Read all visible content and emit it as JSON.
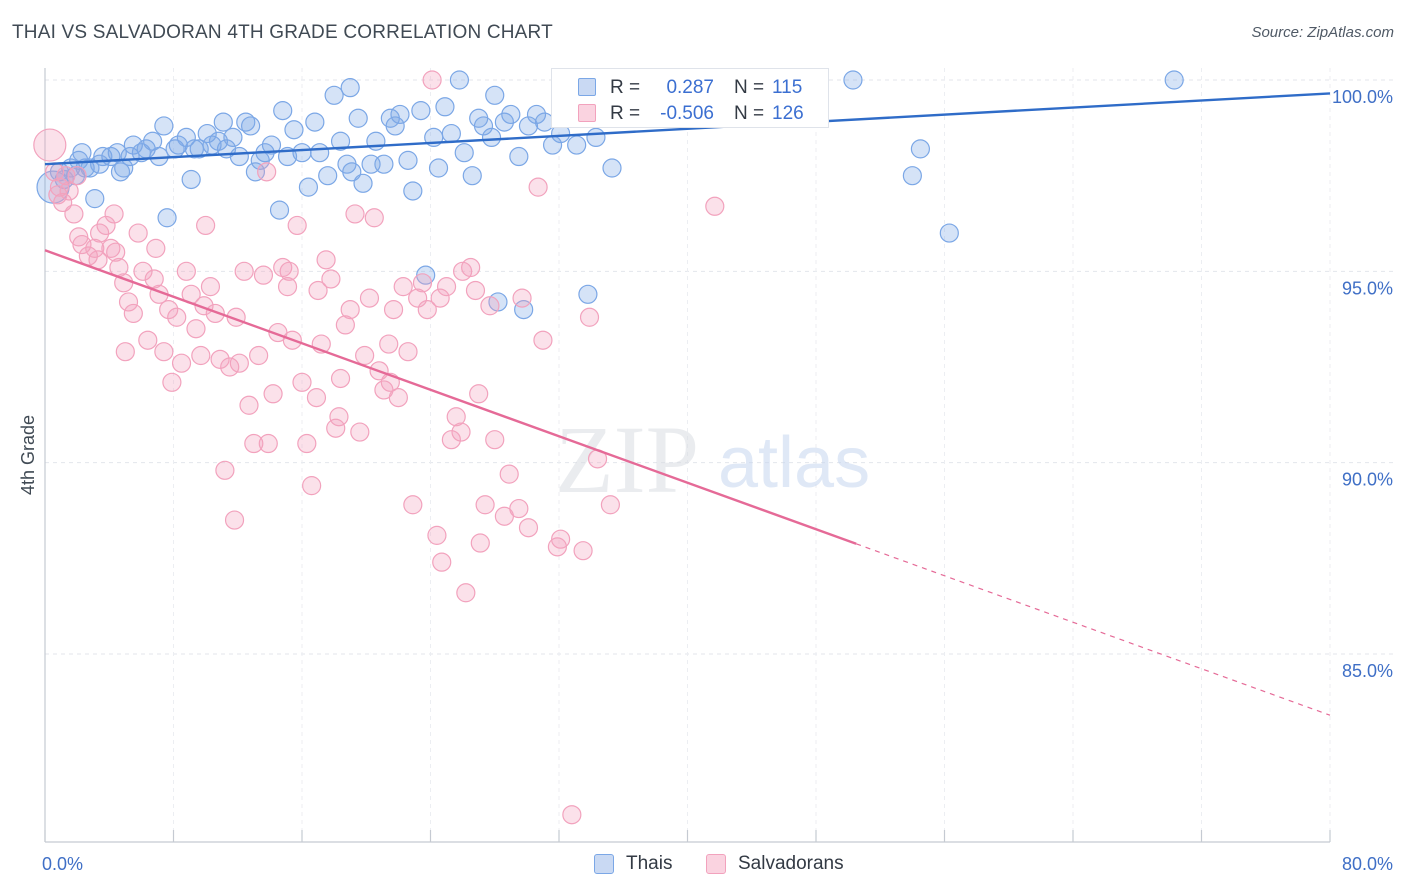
{
  "header": {
    "title": "THAI VS SALVADORAN 4TH GRADE CORRELATION CHART",
    "source": "Source: ZipAtlas.com"
  },
  "watermark": {
    "zip": "ZIP",
    "atlas": "atlas"
  },
  "legend_top": {
    "rows": [
      {
        "r_label": "R =",
        "r_value": "0.287",
        "n_label": "N =",
        "n_value": "115"
      },
      {
        "r_label": "R =",
        "r_value": "-0.506",
        "n_label": "N =",
        "n_value": "126"
      }
    ]
  },
  "legend_bottom": {
    "items": [
      {
        "label": "Thais"
      },
      {
        "label": "Salvadorans"
      }
    ]
  },
  "chart_data": {
    "type": "scatter",
    "title": "THAI VS SALVADORAN 4TH GRADE CORRELATION CHART",
    "xlabel": "",
    "ylabel": "4th Grade",
    "xlim": [
      0,
      80
    ],
    "ylim": [
      80.5,
      100.6
    ],
    "x_tick_labels": [
      "0.0%",
      "80.0%"
    ],
    "y_ticks": [
      {
        "value": 100,
        "label": "100.0%"
      },
      {
        "value": 95,
        "label": "95.0%"
      },
      {
        "value": 90,
        "label": "90.0%"
      },
      {
        "value": 85,
        "label": "85.0%"
      }
    ],
    "grid": true,
    "legend_placement": "bottom-center",
    "series": [
      {
        "name": "Thais",
        "color": "#7ba7e6",
        "line_color": "#2f6cc8",
        "r": 0.287,
        "n": 115,
        "trend": {
          "x": [
            0,
            80
          ],
          "y": [
            97.8,
            99.65
          ],
          "dashed_from": null
        },
        "points": [
          [
            0.5,
            97.2
          ],
          [
            0.9,
            97.6
          ],
          [
            1.2,
            97.4
          ],
          [
            1.6,
            97.7
          ],
          [
            2.1,
            97.9
          ],
          [
            2.3,
            98.1
          ],
          [
            2.8,
            97.7
          ],
          [
            3.1,
            96.9
          ],
          [
            3.6,
            98.0
          ],
          [
            4.1,
            98.0
          ],
          [
            4.5,
            98.1
          ],
          [
            4.9,
            97.7
          ],
          [
            5.3,
            98.0
          ],
          [
            5.5,
            98.3
          ],
          [
            6.0,
            98.1
          ],
          [
            6.3,
            98.2
          ],
          [
            6.7,
            98.4
          ],
          [
            7.1,
            98.0
          ],
          [
            7.4,
            98.8
          ],
          [
            7.6,
            96.4
          ],
          [
            8.1,
            98.2
          ],
          [
            8.3,
            98.3
          ],
          [
            8.8,
            98.5
          ],
          [
            9.1,
            97.4
          ],
          [
            9.3,
            98.2
          ],
          [
            9.6,
            98.2
          ],
          [
            10.1,
            98.6
          ],
          [
            10.4,
            98.3
          ],
          [
            10.8,
            98.4
          ],
          [
            11.1,
            98.9
          ],
          [
            11.3,
            98.2
          ],
          [
            11.7,
            98.5
          ],
          [
            12.1,
            98.0
          ],
          [
            12.5,
            98.9
          ],
          [
            12.8,
            98.8
          ],
          [
            13.1,
            97.6
          ],
          [
            13.4,
            97.9
          ],
          [
            13.7,
            98.1
          ],
          [
            14.1,
            98.3
          ],
          [
            14.6,
            96.6
          ],
          [
            14.8,
            99.2
          ],
          [
            15.1,
            98.0
          ],
          [
            15.5,
            98.7
          ],
          [
            16.0,
            98.1
          ],
          [
            16.4,
            97.2
          ],
          [
            16.8,
            98.9
          ],
          [
            17.1,
            98.1
          ],
          [
            17.6,
            97.5
          ],
          [
            18.0,
            99.6
          ],
          [
            18.4,
            98.4
          ],
          [
            18.8,
            97.8
          ],
          [
            19.1,
            97.6
          ],
          [
            19.5,
            99.0
          ],
          [
            19.8,
            97.3
          ],
          [
            20.3,
            97.8
          ],
          [
            20.6,
            98.4
          ],
          [
            21.1,
            97.8
          ],
          [
            21.5,
            99.0
          ],
          [
            21.8,
            98.8
          ],
          [
            22.1,
            99.1
          ],
          [
            22.6,
            97.9
          ],
          [
            22.9,
            97.1
          ],
          [
            23.4,
            99.2
          ],
          [
            23.7,
            94.9
          ],
          [
            24.2,
            98.5
          ],
          [
            24.5,
            97.7
          ],
          [
            24.9,
            99.3
          ],
          [
            25.3,
            98.6
          ],
          [
            25.8,
            100.0
          ],
          [
            26.1,
            98.1
          ],
          [
            26.6,
            97.5
          ],
          [
            27.0,
            99.0
          ],
          [
            27.3,
            98.8
          ],
          [
            27.8,
            98.5
          ],
          [
            28.2,
            94.2
          ],
          [
            28.6,
            98.9
          ],
          [
            29.0,
            99.1
          ],
          [
            29.5,
            98.0
          ],
          [
            29.8,
            94.0
          ],
          [
            30.1,
            98.8
          ],
          [
            30.6,
            99.1
          ],
          [
            31.1,
            98.9
          ],
          [
            31.6,
            98.3
          ],
          [
            32.1,
            98.6
          ],
          [
            32.6,
            99.6
          ],
          [
            33.1,
            98.3
          ],
          [
            33.8,
            94.4
          ],
          [
            34.3,
            98.5
          ],
          [
            34.8,
            99.8
          ],
          [
            35.3,
            97.7
          ],
          [
            36.0,
            99.6
          ],
          [
            36.5,
            100.0
          ],
          [
            37.1,
            99.8
          ],
          [
            37.6,
            99.3
          ],
          [
            38.4,
            99.9
          ],
          [
            39.2,
            99.5
          ],
          [
            40.1,
            99.7
          ],
          [
            40.8,
            99.8
          ],
          [
            41.6,
            99.8
          ],
          [
            42.5,
            99.1
          ],
          [
            43.2,
            99.6
          ],
          [
            44.1,
            99.7
          ],
          [
            45.0,
            99.0
          ],
          [
            46.0,
            99.5
          ],
          [
            47.4,
            99.2
          ],
          [
            50.3,
            100.0
          ],
          [
            54.0,
            97.5
          ],
          [
            54.5,
            98.2
          ],
          [
            56.3,
            96.0
          ],
          [
            70.3,
            100.0
          ],
          [
            2.5,
            97.7
          ],
          [
            1.9,
            97.5
          ],
          [
            4.7,
            97.6
          ],
          [
            3.4,
            97.8
          ],
          [
            28.0,
            99.6
          ],
          [
            19.0,
            99.8
          ]
        ]
      },
      {
        "name": "Salvadorans",
        "color": "#f2a2bd",
        "line_color": "#e56a97",
        "r": -0.506,
        "n": 126,
        "trend": {
          "x": [
            0,
            80
          ],
          "y": [
            95.55,
            83.4
          ],
          "dashed_from": 50.5
        },
        "points": [
          [
            0.3,
            98.3
          ],
          [
            0.6,
            97.6
          ],
          [
            0.9,
            97.2
          ],
          [
            1.1,
            96.8
          ],
          [
            1.5,
            97.1
          ],
          [
            1.8,
            96.5
          ],
          [
            2.1,
            95.9
          ],
          [
            2.3,
            95.7
          ],
          [
            2.7,
            95.4
          ],
          [
            3.1,
            95.6
          ],
          [
            3.4,
            96.0
          ],
          [
            3.8,
            96.2
          ],
          [
            4.1,
            95.6
          ],
          [
            4.4,
            95.5
          ],
          [
            4.6,
            95.1
          ],
          [
            4.9,
            94.7
          ],
          [
            5.2,
            94.2
          ],
          [
            5.5,
            93.9
          ],
          [
            5.8,
            96.0
          ],
          [
            6.1,
            95.0
          ],
          [
            6.4,
            93.2
          ],
          [
            6.8,
            94.8
          ],
          [
            7.1,
            94.4
          ],
          [
            7.4,
            92.9
          ],
          [
            7.7,
            94.0
          ],
          [
            7.9,
            92.1
          ],
          [
            8.2,
            93.8
          ],
          [
            8.5,
            92.6
          ],
          [
            8.8,
            95.0
          ],
          [
            9.1,
            94.4
          ],
          [
            9.4,
            93.5
          ],
          [
            9.7,
            92.8
          ],
          [
            10.0,
            96.2
          ],
          [
            10.3,
            94.6
          ],
          [
            10.6,
            93.9
          ],
          [
            10.9,
            92.7
          ],
          [
            11.2,
            89.8
          ],
          [
            11.5,
            92.5
          ],
          [
            11.8,
            88.5
          ],
          [
            12.1,
            92.6
          ],
          [
            12.4,
            95.0
          ],
          [
            12.7,
            91.5
          ],
          [
            13.0,
            90.5
          ],
          [
            13.3,
            92.8
          ],
          [
            13.6,
            94.9
          ],
          [
            13.9,
            90.5
          ],
          [
            14.2,
            91.8
          ],
          [
            14.5,
            93.4
          ],
          [
            14.8,
            95.1
          ],
          [
            15.1,
            94.6
          ],
          [
            15.4,
            93.2
          ],
          [
            15.7,
            96.2
          ],
          [
            16.0,
            92.1
          ],
          [
            16.3,
            90.5
          ],
          [
            16.6,
            89.4
          ],
          [
            16.9,
            91.7
          ],
          [
            17.2,
            93.1
          ],
          [
            17.5,
            95.3
          ],
          [
            17.8,
            94.8
          ],
          [
            18.1,
            90.9
          ],
          [
            18.4,
            92.2
          ],
          [
            18.7,
            93.6
          ],
          [
            19.0,
            94.0
          ],
          [
            19.3,
            96.5
          ],
          [
            19.6,
            90.8
          ],
          [
            19.9,
            92.8
          ],
          [
            20.2,
            94.3
          ],
          [
            20.5,
            96.4
          ],
          [
            20.8,
            92.4
          ],
          [
            21.1,
            91.9
          ],
          [
            21.4,
            93.1
          ],
          [
            21.7,
            94.0
          ],
          [
            22.0,
            91.7
          ],
          [
            22.3,
            94.6
          ],
          [
            22.6,
            92.9
          ],
          [
            22.9,
            88.9
          ],
          [
            23.2,
            94.3
          ],
          [
            23.5,
            94.7
          ],
          [
            23.8,
            94.0
          ],
          [
            24.1,
            100.0
          ],
          [
            24.4,
            88.1
          ],
          [
            24.7,
            87.4
          ],
          [
            25.0,
            94.6
          ],
          [
            25.3,
            90.6
          ],
          [
            25.6,
            91.2
          ],
          [
            25.9,
            90.8
          ],
          [
            26.2,
            86.6
          ],
          [
            26.5,
            95.1
          ],
          [
            26.8,
            94.5
          ],
          [
            27.1,
            87.9
          ],
          [
            27.4,
            88.9
          ],
          [
            27.7,
            94.1
          ],
          [
            28.0,
            90.6
          ],
          [
            28.6,
            88.6
          ],
          [
            28.9,
            89.7
          ],
          [
            29.5,
            88.8
          ],
          [
            30.1,
            88.3
          ],
          [
            31.0,
            93.2
          ],
          [
            31.9,
            87.8
          ],
          [
            32.8,
            80.8
          ],
          [
            33.5,
            87.7
          ],
          [
            33.9,
            93.8
          ],
          [
            34.4,
            90.1
          ],
          [
            35.2,
            88.9
          ],
          [
            41.7,
            96.7
          ],
          [
            2.0,
            97.5
          ],
          [
            3.3,
            95.3
          ],
          [
            6.9,
            95.6
          ],
          [
            9.9,
            94.1
          ],
          [
            11.9,
            93.8
          ],
          [
            13.8,
            97.6
          ],
          [
            15.2,
            95.0
          ],
          [
            17.0,
            94.5
          ],
          [
            18.3,
            91.2
          ],
          [
            21.5,
            92.1
          ],
          [
            24.6,
            94.3
          ],
          [
            26.0,
            95.0
          ],
          [
            27.0,
            91.8
          ],
          [
            29.7,
            94.3
          ],
          [
            30.7,
            97.2
          ],
          [
            32.1,
            88.0
          ],
          [
            1.3,
            97.5
          ],
          [
            0.8,
            97.0
          ],
          [
            4.3,
            96.5
          ],
          [
            5.0,
            92.9
          ]
        ]
      }
    ]
  }
}
